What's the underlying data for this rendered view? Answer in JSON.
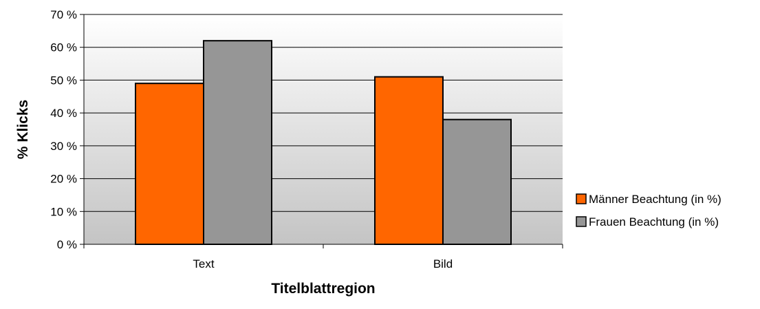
{
  "chart_data": {
    "type": "bar",
    "categories": [
      "Text",
      "Bild"
    ],
    "series": [
      {
        "name": "Männer Beachtung (in %)",
        "values": [
          49,
          51
        ],
        "color": "#ff6600"
      },
      {
        "name": "Frauen Beachtung (in %)",
        "values": [
          62,
          38
        ],
        "color": "#969696"
      }
    ],
    "xlabel": "Titelblattregion",
    "ylabel": "% Klicks",
    "ylim": [
      0,
      70
    ],
    "yticks": [
      0,
      10,
      20,
      30,
      40,
      50,
      60,
      70
    ],
    "ytick_labels": [
      "0 %",
      "10 %",
      "20 %",
      "30 %",
      "40 %",
      "50 %",
      "60 %",
      "70 %"
    ],
    "grid": true,
    "plot_background": "gradient white to grey",
    "legend_position": "right"
  }
}
